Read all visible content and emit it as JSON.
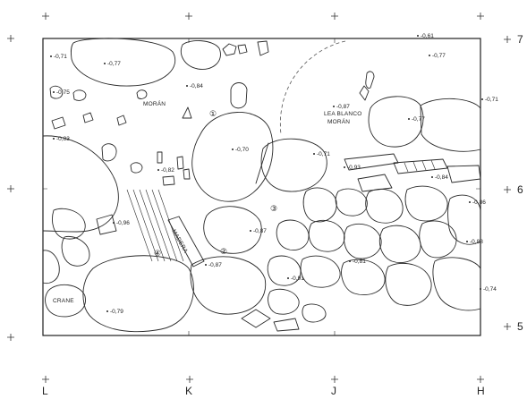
{
  "grid": {
    "columns": [
      "L",
      "K",
      "J",
      "H"
    ],
    "rows": [
      "7",
      "6",
      "5"
    ]
  },
  "zones": [
    "①",
    "②",
    "③",
    "④"
  ],
  "notes": {
    "moran_left": "MORÁN",
    "lea_blanco": "LEA BLANCO",
    "moran_right": "MORÁN",
    "crane": "CRANE",
    "madera": "MADERA"
  },
  "elevations": [
    "-0,71",
    "-0,77",
    "-0,75",
    "-0,84",
    "-0,83",
    "-0,70",
    "-0,71",
    "-0,93",
    "-0,82",
    "-0,61",
    "-0,77",
    "-0,71",
    "-0,77",
    "-0,87",
    "-0,84",
    "-0,86",
    "-0,96",
    "-0,87",
    "-0,88",
    "-0,87",
    "-0,81",
    "-0,91",
    "-0,74",
    "-0,79"
  ]
}
